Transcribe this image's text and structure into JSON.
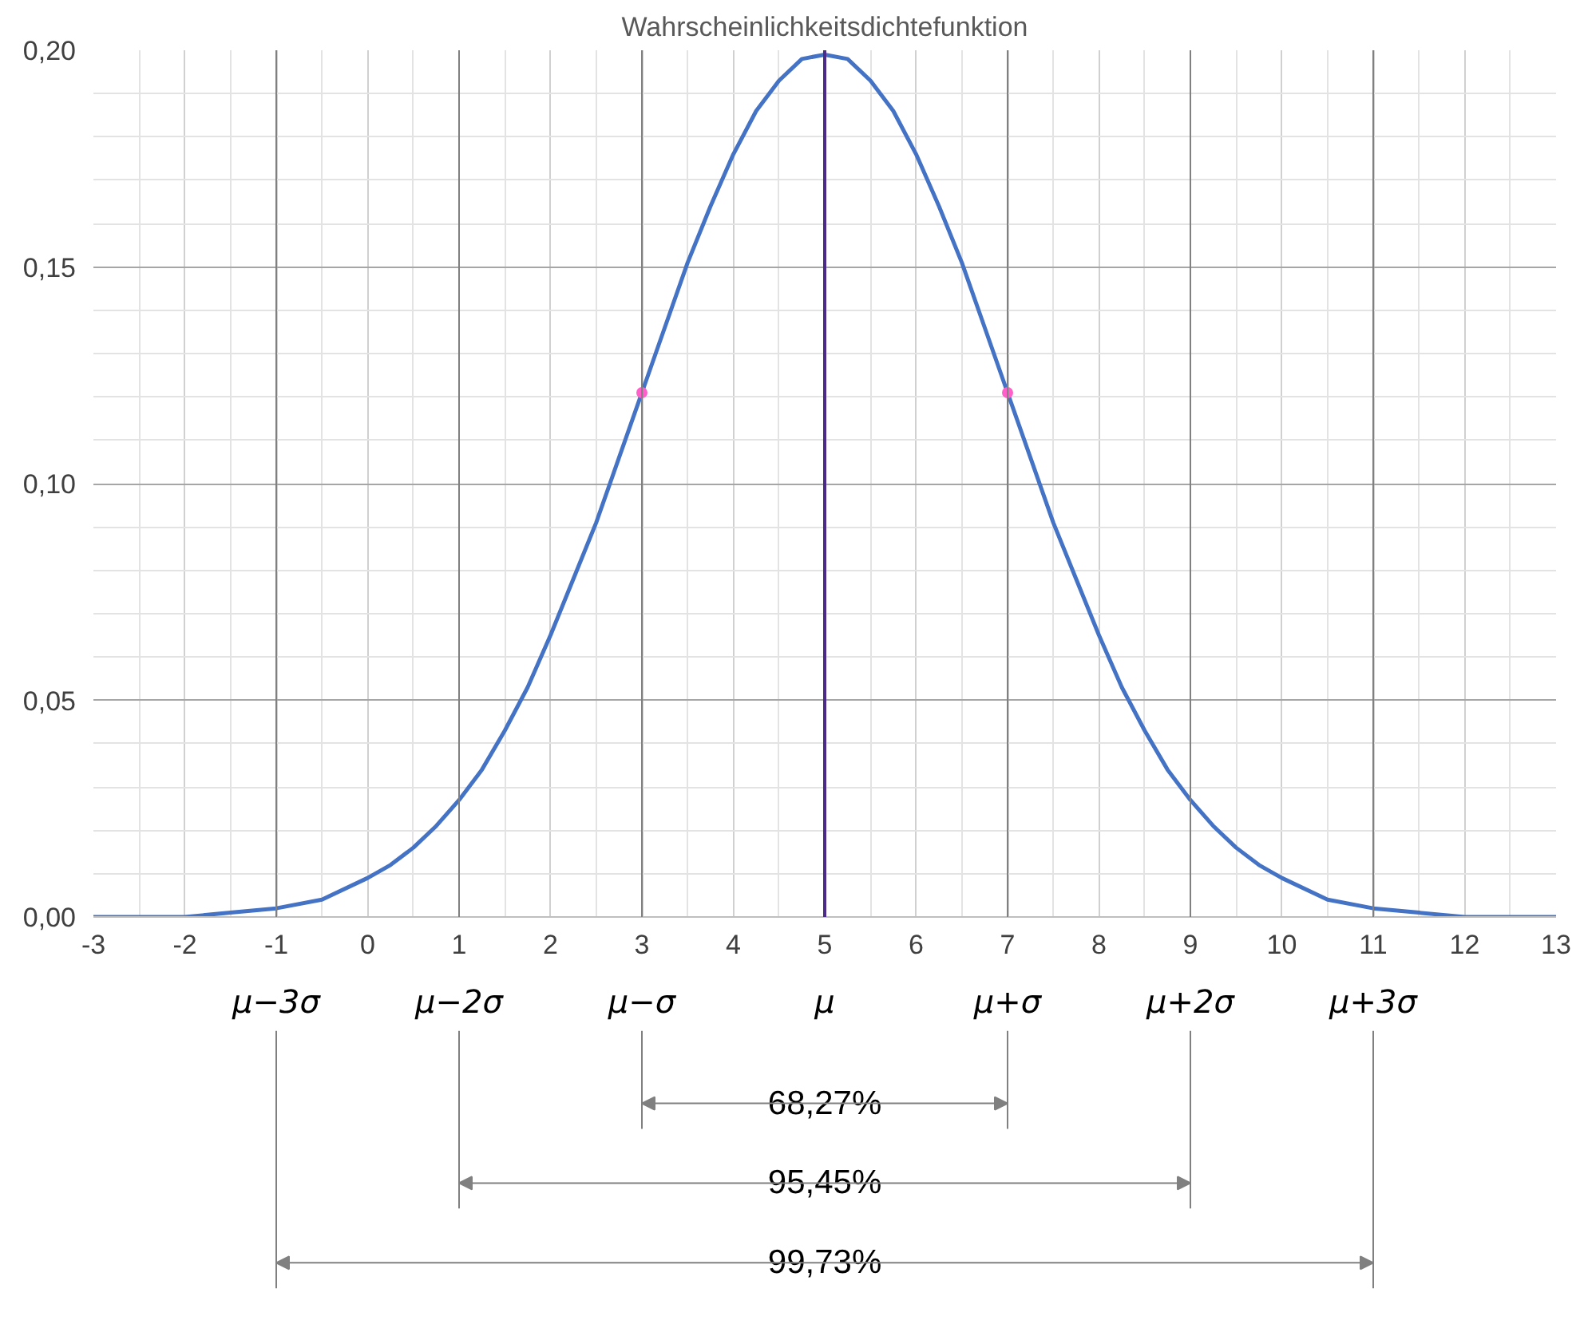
{
  "chart_data": {
    "type": "line",
    "title": "Wahrscheinlichkeitsdichtefunktion",
    "x": [
      -3,
      -2.5,
      -2,
      -1.5,
      -1,
      -0.5,
      0,
      0.25,
      0.5,
      0.75,
      1,
      1.25,
      1.5,
      1.75,
      2,
      2.25,
      2.5,
      2.75,
      3,
      3.25,
      3.5,
      3.75,
      4,
      4.25,
      4.5,
      4.75,
      5,
      5.25,
      5.5,
      5.75,
      6,
      6.25,
      6.5,
      6.75,
      7,
      7.25,
      7.5,
      7.75,
      8,
      8.25,
      8.5,
      8.75,
      9,
      9.25,
      9.5,
      9.75,
      10,
      10.5,
      11,
      11.5,
      12,
      12.5,
      13
    ],
    "series": [
      {
        "color": "#4472c4",
        "values": [
          0.0,
          0.0,
          0.0,
          0.001,
          0.002,
          0.004,
          0.009,
          0.012,
          0.016,
          0.021,
          0.027,
          0.034,
          0.043,
          0.053,
          0.065,
          0.078,
          0.091,
          0.106,
          0.121,
          0.136,
          0.151,
          0.164,
          0.176,
          0.186,
          0.193,
          0.198,
          0.199,
          0.198,
          0.193,
          0.186,
          0.176,
          0.164,
          0.151,
          0.136,
          0.121,
          0.106,
          0.091,
          0.078,
          0.065,
          0.053,
          0.043,
          0.034,
          0.027,
          0.021,
          0.016,
          0.012,
          0.009,
          0.004,
          0.002,
          0.001,
          0.0,
          0.0,
          0.0
        ]
      },
      {
        "type": "scatter",
        "color": "#ff5fc8",
        "x": [
          3,
          7
        ],
        "values": [
          0.121,
          0.121
        ],
        "marker": "circle"
      }
    ],
    "xlim": [
      -3,
      13
    ],
    "xticks": [
      -3,
      -2,
      -1,
      0,
      1,
      2,
      3,
      4,
      5,
      6,
      7,
      8,
      9,
      10,
      11,
      12,
      13
    ],
    "ylim": [
      0,
      0.2
    ],
    "yticks": [
      {
        "value": 0,
        "label": "0,00"
      },
      {
        "value": 0.05,
        "label": "0,05"
      },
      {
        "value": 0.1,
        "label": "0,10"
      },
      {
        "value": 0.15,
        "label": "0,15"
      },
      {
        "value": 0.2,
        "label": "0,20"
      }
    ],
    "grid": true,
    "ref_lines": [
      {
        "axis": "x",
        "value": -1,
        "label": "μ−3σ",
        "color": "#808080"
      },
      {
        "axis": "x",
        "value": 1,
        "label": "μ−2σ",
        "color": "#808080"
      },
      {
        "axis": "x",
        "value": 3,
        "label": "μ−σ",
        "color": "#808080"
      },
      {
        "axis": "x",
        "value": 5,
        "label": "μ",
        "color": "#4b2a8a"
      },
      {
        "axis": "x",
        "value": 7,
        "label": "μ+σ",
        "color": "#808080"
      },
      {
        "axis": "x",
        "value": 9,
        "label": "μ+2σ",
        "color": "#808080"
      },
      {
        "axis": "x",
        "value": 11,
        "label": "μ+3σ",
        "color": "#808080"
      }
    ],
    "annotations": [
      "68,27%",
      "95,45%",
      "99,73%"
    ]
  }
}
